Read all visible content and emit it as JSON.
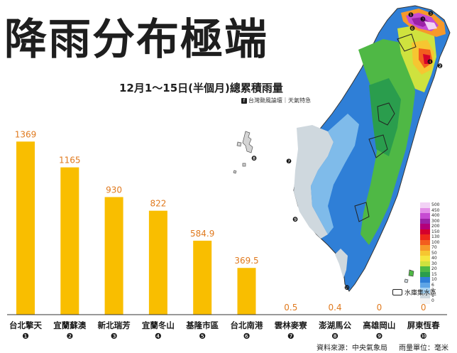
{
  "title": "降雨分布極端",
  "subtitle": "12月1～15日(半個月)總累積雨量",
  "credit": {
    "fb_icon": "f",
    "text": "台灣颱風論壇｜天氣特急"
  },
  "chart_data": {
    "type": "bar",
    "categories": [
      "台北擎天",
      "宜蘭蘇澳",
      "新北瑞芳",
      "宜蘭冬山",
      "基隆市區",
      "台北南港",
      "雲林麥寮",
      "澎湖馬公",
      "高雄岡山",
      "屏東恆春"
    ],
    "rank_markers": [
      "❶",
      "❷",
      "❸",
      "❹",
      "❺",
      "❻",
      "❼",
      "❽",
      "❾",
      "❿"
    ],
    "values": [
      1369,
      1165,
      930,
      822,
      584.9,
      369.5,
      0.5,
      0.4,
      0,
      0
    ],
    "value_labels": [
      "1369",
      "1165",
      "930",
      "822",
      "584.9",
      "369.5",
      "0.5",
      "0.4",
      "0",
      "0"
    ],
    "ylim": [
      0,
      1500
    ],
    "bar_color": "#f9be00",
    "label_color": "#e07a1f",
    "grid": false
  },
  "map": {
    "station_markers": [
      "❶",
      "❷",
      "❸",
      "❹",
      "❺",
      "❻",
      "❼",
      "❽",
      "❾",
      "❿"
    ],
    "legend": [
      {
        "label": "500",
        "color": "#f2d2f5"
      },
      {
        "label": "450",
        "color": "#e38ee8"
      },
      {
        "label": "400",
        "color": "#c64bd2"
      },
      {
        "label": "300",
        "color": "#9b22a6"
      },
      {
        "label": "200",
        "color": "#b3007a"
      },
      {
        "label": "150",
        "color": "#d5002c"
      },
      {
        "label": "130",
        "color": "#ee2a1a"
      },
      {
        "label": "100",
        "color": "#f35d1e"
      },
      {
        "label": "70",
        "color": "#f7992a"
      },
      {
        "label": "50",
        "color": "#f6c631"
      },
      {
        "label": "40",
        "color": "#f5e640"
      },
      {
        "label": "30",
        "color": "#cfe23e"
      },
      {
        "label": "20",
        "color": "#4fb845"
      },
      {
        "label": "15",
        "color": "#2a9d4d"
      },
      {
        "label": "10",
        "color": "#2f7fd7"
      },
      {
        "label": "6",
        "color": "#5fa5e6"
      },
      {
        "label": "2",
        "color": "#a7d2f2"
      },
      {
        "label": "1",
        "color": "#cfd8de"
      },
      {
        "label": "0",
        "color": "#f4f4f4"
      }
    ],
    "reservoir_label": "水庫集水區"
  },
  "footer": {
    "source": "資料來源：中央氣象局",
    "unit": "雨量單位：毫米"
  }
}
